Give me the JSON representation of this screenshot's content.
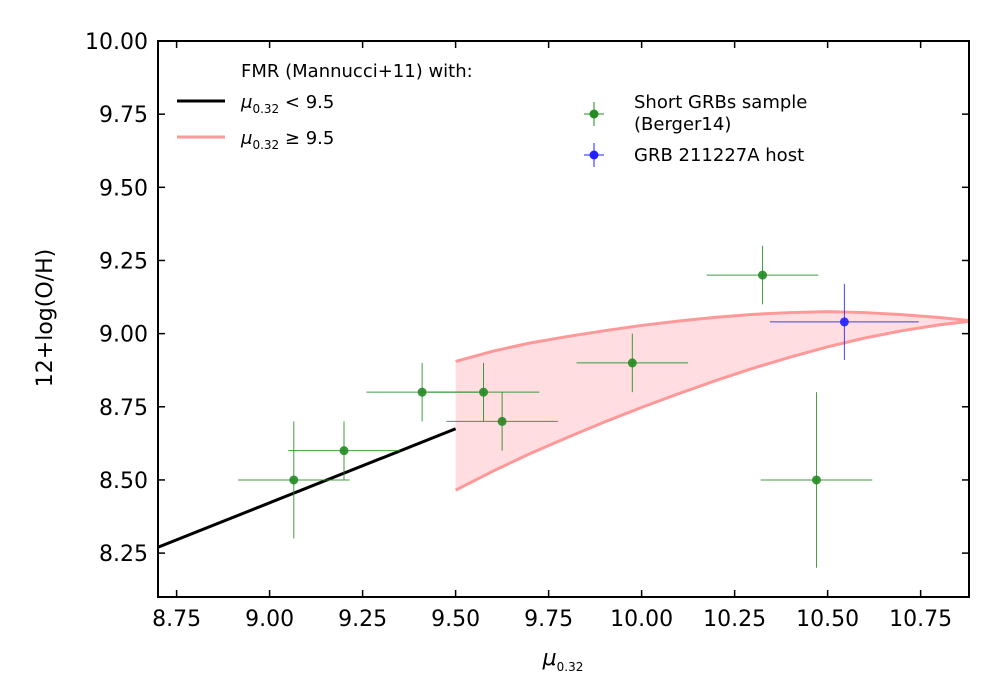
{
  "chart_data": {
    "type": "scatter",
    "title": "",
    "xlabel": "μ",
    "xlabel_sub": "0.32",
    "ylabel": "12+log(O/H)",
    "xlim": [
      8.7,
      10.88
    ],
    "ylim": [
      8.1,
      10.0
    ],
    "xticks": [
      "8.75",
      "9.00",
      "9.25",
      "9.50",
      "9.75",
      "10.00",
      "10.25",
      "10.50",
      "10.75"
    ],
    "yticks": [
      "8.25",
      "8.50",
      "8.75",
      "9.00",
      "9.25",
      "9.50",
      "9.75",
      "10.00"
    ],
    "fmr_title": "FMR (Mannucci+11) with:",
    "fmr_series": [
      {
        "name": "μ0.32 < 9.5",
        "label_mu": "μ",
        "label_sub": "0.32",
        "label_rest": " < 9.5",
        "color": "#000000",
        "x": [
          8.7,
          9.5
        ],
        "y": [
          8.27,
          8.675
        ]
      },
      {
        "name": "μ0.32 ≥ 9.5",
        "label_mu": "μ",
        "label_sub": "0.32",
        "label_rest": " ≥ 9.5",
        "color": "#ff9999",
        "fill_color": "#ffdde0",
        "x": [
          9.5,
          9.6,
          9.7,
          9.8,
          9.9,
          10.0,
          10.1,
          10.2,
          10.3,
          10.4,
          10.5,
          10.6,
          10.7,
          10.8,
          10.88
        ],
        "upper": [
          8.905,
          8.94,
          8.968,
          8.99,
          9.01,
          9.028,
          9.043,
          9.056,
          9.066,
          9.072,
          9.075,
          9.072,
          9.065,
          9.055,
          9.045
        ],
        "lower": [
          8.465,
          8.53,
          8.59,
          8.645,
          8.698,
          8.748,
          8.795,
          8.84,
          8.882,
          8.92,
          8.955,
          8.985,
          9.01,
          9.03,
          9.042
        ]
      }
    ],
    "series": [
      {
        "name": "Short GRBs sample (Berger14)",
        "label_line1": "Short GRBs sample",
        "label_line2": "(Berger14)",
        "color": "#228b22",
        "points": [
          {
            "x": 9.065,
            "y": 8.5,
            "xerr": 0.15,
            "yerr": 0.2
          },
          {
            "x": 9.2,
            "y": 8.6,
            "xerr": 0.15,
            "yerr": 0.1
          },
          {
            "x": 9.41,
            "y": 8.8,
            "xerr": 0.15,
            "yerr": 0.1
          },
          {
            "x": 9.575,
            "y": 8.8,
            "xerr": 0.15,
            "yerr": 0.1
          },
          {
            "x": 9.625,
            "y": 8.7,
            "xerr": 0.15,
            "yerr": 0.1
          },
          {
            "x": 9.975,
            "y": 8.9,
            "xerr": 0.15,
            "yerr": 0.1
          },
          {
            "x": 10.325,
            "y": 9.2,
            "xerr": 0.15,
            "yerr": 0.1
          },
          {
            "x": 10.47,
            "y": 8.5,
            "xerr": 0.15,
            "yerr": 0.3
          }
        ]
      },
      {
        "name": "GRB 211227A host",
        "label_line1": "GRB 211227A host",
        "label_line2": "",
        "color": "#2222ff",
        "points": [
          {
            "x": 10.545,
            "y": 9.04,
            "xerr": 0.2,
            "yerr": 0.13
          }
        ]
      }
    ]
  }
}
